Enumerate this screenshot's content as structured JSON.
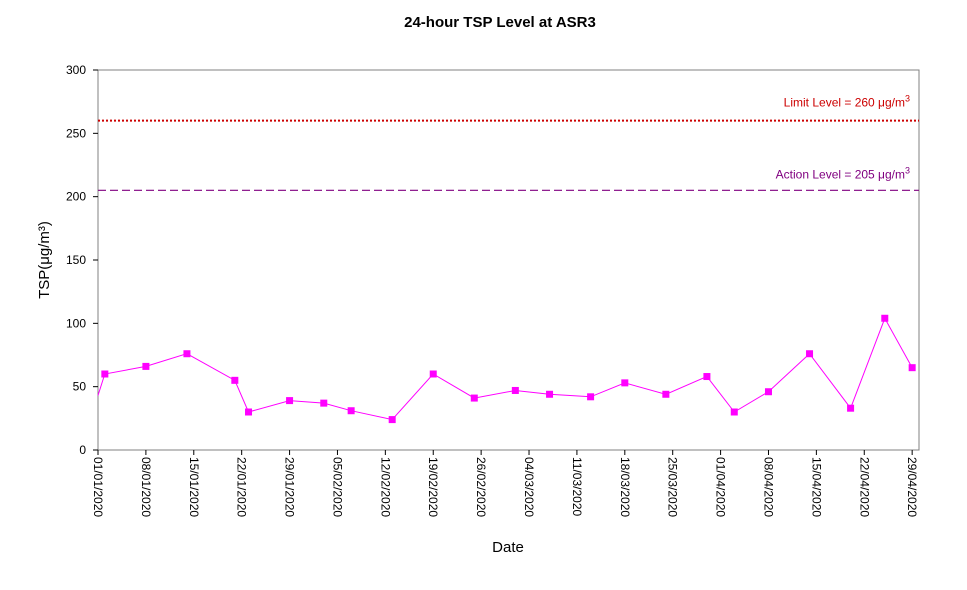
{
  "chart_data": {
    "type": "line",
    "title": "24-hour TSP Level at ASR3",
    "xlabel": "Date",
    "ylabel": "TSP(μg/m³)",
    "ylim": [
      0,
      300
    ],
    "yticks": [
      0,
      50,
      100,
      150,
      200,
      250,
      300
    ],
    "xlim": [
      "01/01/2020",
      "30/04/2020"
    ],
    "xticks": [
      "01/01/2020",
      "08/01/2020",
      "15/01/2020",
      "22/01/2020",
      "29/01/2020",
      "05/02/2020",
      "12/02/2020",
      "19/02/2020",
      "26/02/2020",
      "04/03/2020",
      "11/03/2020",
      "18/03/2020",
      "25/03/2020",
      "01/04/2020",
      "08/04/2020",
      "15/04/2020",
      "22/04/2020",
      "29/04/2020"
    ],
    "grid": false,
    "series": [
      {
        "color": "#ff00ff",
        "marker": "square",
        "points": [
          {
            "x": "01/01/2020",
            "y": 43
          },
          {
            "x": "02/01/2020",
            "y": 60
          },
          {
            "x": "08/01/2020",
            "y": 66
          },
          {
            "x": "14/01/2020",
            "y": 76
          },
          {
            "x": "21/01/2020",
            "y": 55
          },
          {
            "x": "23/01/2020",
            "y": 30
          },
          {
            "x": "29/01/2020",
            "y": 39
          },
          {
            "x": "03/02/2020",
            "y": 37
          },
          {
            "x": "07/02/2020",
            "y": 31
          },
          {
            "x": "13/02/2020",
            "y": 24
          },
          {
            "x": "19/02/2020",
            "y": 60
          },
          {
            "x": "25/02/2020",
            "y": 41
          },
          {
            "x": "02/03/2020",
            "y": 47
          },
          {
            "x": "07/03/2020",
            "y": 44
          },
          {
            "x": "13/03/2020",
            "y": 42
          },
          {
            "x": "18/03/2020",
            "y": 53
          },
          {
            "x": "24/03/2020",
            "y": 44
          },
          {
            "x": "30/03/2020",
            "y": 58
          },
          {
            "x": "03/04/2020",
            "y": 30
          },
          {
            "x": "08/04/2020",
            "y": 46
          },
          {
            "x": "14/04/2020",
            "y": 76
          },
          {
            "x": "20/04/2020",
            "y": 33
          },
          {
            "x": "25/04/2020",
            "y": 104
          },
          {
            "x": "29/04/2020",
            "y": 65
          }
        ]
      }
    ],
    "reference_lines": [
      {
        "value": 260,
        "label": "Limit Level  = 260 μg/m",
        "superscript": "3",
        "color": "#cc0000",
        "style": "dotted"
      },
      {
        "value": 205,
        "label": "Action Level  = 205 μg/m",
        "superscript": "3",
        "color": "#800080",
        "style": "dashed"
      }
    ]
  }
}
